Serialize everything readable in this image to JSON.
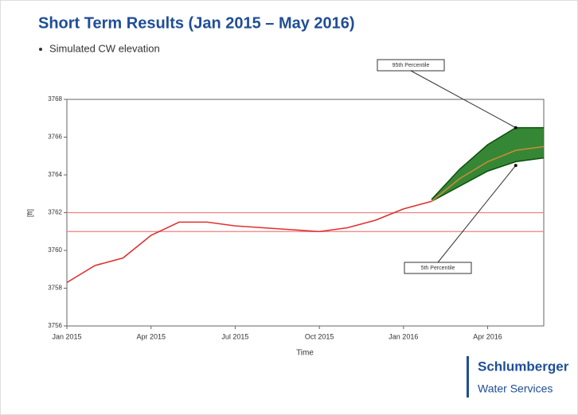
{
  "chart_data": {
    "type": "line",
    "title": "Short Term Results (Jan 2015 – May 2016)",
    "bullet": "Simulated CW elevation",
    "y_label": "[ft]",
    "x_label": "Time",
    "x": [
      "Jan 2015",
      "Feb 2015",
      "Mar 2015",
      "Apr 2015",
      "May 2015",
      "Jun 2015",
      "Jul 2015",
      "Aug 2015",
      "Sep 2015",
      "Oct 2015",
      "Nov 2015",
      "Dec 2015",
      "Jan 2016",
      "Feb 2016"
    ],
    "series": [
      {
        "color": "#e03030",
        "values": [
          3758.3,
          3759.2,
          3759.6,
          3760.8,
          3761.5,
          3761.5,
          3761.3,
          3761.2,
          3761.1,
          3761.0,
          3761.2,
          3761.6,
          3762.2,
          3762.6
        ]
      }
    ],
    "forecast_x": [
      "Feb 2016",
      "Mar 2016",
      "Apr 2016",
      "May 2016",
      "Jun 2016"
    ],
    "forecast": {
      "band_color": "#1f7a1f",
      "edge_color": "#0d4f0d",
      "median_color": "#d08a3a",
      "upper": [
        3762.7,
        3764.3,
        3765.6,
        3766.5,
        3766.5
      ],
      "median": [
        3762.6,
        3763.8,
        3764.7,
        3765.3,
        3765.5
      ],
      "lower": [
        3762.6,
        3763.4,
        3764.2,
        3764.7,
        3764.9
      ]
    },
    "hlines": [
      3762,
      3761
    ],
    "hline_color": "#f08080",
    "xlim": [
      "Jan 2015",
      "Jun 2016"
    ],
    "xticks": [
      "Jan 2015",
      "Apr 2015",
      "Jul 2015",
      "Oct 2015",
      "Jan 2016",
      "Apr 2016"
    ],
    "ylim": [
      3756,
      3768
    ],
    "yticks": [
      3756,
      3758,
      3760,
      3762,
      3764,
      3766,
      3768
    ],
    "annotations": [
      {
        "text": "95th Percentile",
        "x": "May 2016",
        "y": 3766.5
      },
      {
        "text": "5th Percentile",
        "x": "May 2016",
        "y": 3764.5
      }
    ]
  },
  "logo": {
    "name": "Schlumberger",
    "subtitle": "Water Services"
  }
}
